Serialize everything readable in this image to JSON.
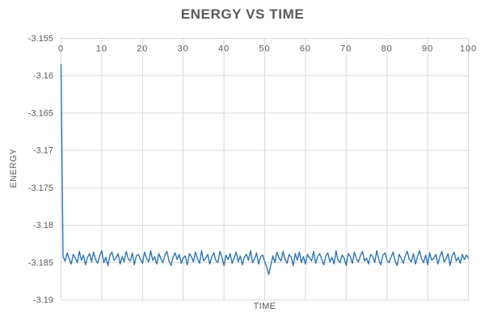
{
  "chart_data": {
    "type": "line",
    "title": "ENERGY VS TIME",
    "xlabel": "TIME",
    "ylabel": "ENERGY",
    "xlim": [
      0,
      100
    ],
    "ylim": [
      -3.19,
      -3.155
    ],
    "x_ticks": [
      0,
      10,
      20,
      30,
      40,
      50,
      60,
      70,
      80,
      90,
      100
    ],
    "x_tick_labels": [
      "0",
      "10",
      "20",
      "30",
      "40",
      "50",
      "60",
      "70",
      "80",
      "90",
      "100"
    ],
    "y_ticks": [
      -3.155,
      -3.16,
      -3.165,
      -3.17,
      -3.175,
      -3.18,
      -3.185,
      -3.19
    ],
    "y_tick_labels": [
      "-3.155",
      "-3.16",
      "-3.165",
      "-3.17",
      "-3.175",
      "-3.18",
      "-3.185",
      "-3.19"
    ],
    "grid": true,
    "legend": false,
    "colors": {
      "series": "#2E75B6",
      "gridline": "#D9D9D9",
      "tick_label": "#595959",
      "title": "#595959",
      "background": "#FFFFFF"
    },
    "series": [
      {
        "name": "ENERGY",
        "x_start": 0,
        "x_step": 0.5,
        "y_base": -3.1844,
        "y_offset_scale": 0.0001,
        "y_offsets": [
          259,
          2,
          -4,
          7,
          -1,
          -8,
          5,
          0,
          -6,
          9,
          -3,
          4,
          -9,
          1,
          6,
          -5,
          8,
          -2,
          -7,
          3,
          10,
          -6,
          1,
          -10,
          4,
          8,
          -3,
          0,
          6,
          -8,
          2,
          -5,
          9,
          -1,
          -4,
          7,
          -9,
          3,
          5,
          -2,
          -7,
          8,
          0,
          -5,
          10,
          -3,
          2,
          -8,
          6,
          -1,
          -6,
          4,
          9,
          -4,
          -10,
          1,
          7,
          -2,
          5,
          -7,
          0,
          3,
          -9,
          6,
          2,
          -5,
          8,
          -1,
          -7,
          10,
          -4,
          0,
          5,
          -8,
          2,
          7,
          -3,
          -6,
          9,
          1,
          -10,
          4,
          -2,
          6,
          -7,
          0,
          8,
          -5,
          3,
          -9,
          1,
          5,
          -3,
          10,
          -6,
          -1,
          7,
          -8,
          2,
          4,
          -5,
          -12,
          -22,
          -9,
          3,
          -6,
          8,
          0,
          -4,
          9,
          -2,
          -7,
          5,
          1,
          -10,
          6,
          -3,
          8,
          -6,
          2,
          -8,
          5,
          0,
          -4,
          9,
          -7,
          2,
          6,
          -2,
          -9,
          3,
          7,
          -5,
          1,
          -8,
          10,
          -3,
          -6,
          4,
          0,
          -10,
          6,
          2,
          -7,
          8,
          -1,
          -5,
          3,
          9,
          -4,
          0,
          -8,
          5,
          2,
          -6,
          10,
          -2,
          -9,
          4,
          7,
          -3,
          -6,
          1,
          8,
          -4,
          -10,
          5,
          0,
          -7,
          3,
          9,
          -2,
          -5,
          6,
          -8,
          2,
          10,
          -1,
          -6,
          4,
          -9,
          7,
          -3,
          0,
          5,
          -8,
          2,
          9,
          -5,
          -1,
          6,
          -10,
          3,
          8,
          -4,
          1,
          -7,
          5,
          -2,
          4,
          0
        ]
      }
    ]
  }
}
